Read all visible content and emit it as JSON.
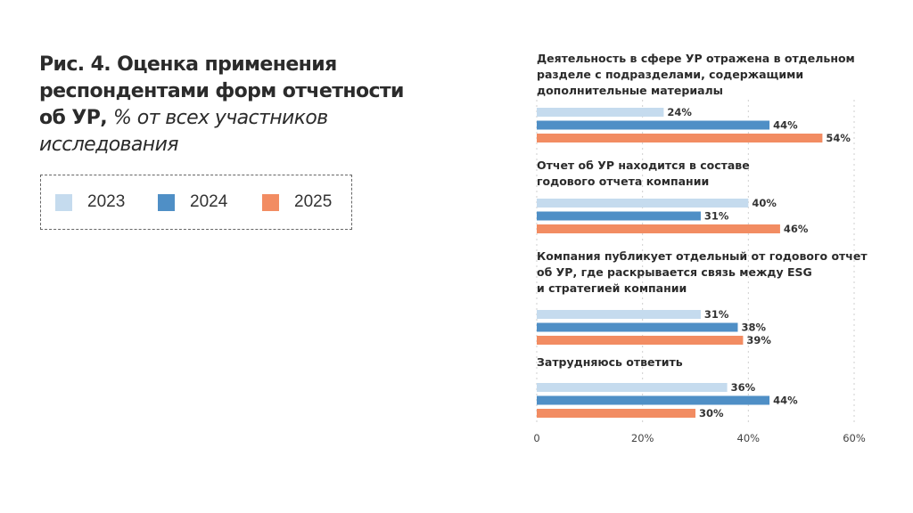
{
  "title": {
    "main": "Рис. 4. Оценка применения респондентами форм отчетности об УР,",
    "subtitle": "% от всех участников исследования"
  },
  "legend": [
    {
      "label": "2023",
      "color": "#c5dbee"
    },
    {
      "label": "2024",
      "color": "#4f8fc6"
    },
    {
      "label": "2025",
      "color": "#f28c62"
    }
  ],
  "chart_data": {
    "type": "bar",
    "orientation": "horizontal",
    "title": "Рис. 4. Оценка применения респондентами форм отчетности об УР, % от всех участников исследования",
    "xlabel": "",
    "ylabel": "",
    "xlim": [
      0,
      60
    ],
    "xticks": [
      "0",
      "20%",
      "40%",
      "60%"
    ],
    "xtick_values": [
      0,
      20,
      40,
      60
    ],
    "grid": "vertical dotted",
    "legend_position": "left",
    "categories": [
      [
        "Деятельность в сфере УР отражена в отдельном",
        "разделе с подразделами, содержащими",
        "дополнительные материалы"
      ],
      [
        "Отчет об УР находится в составе",
        "годового отчета компании"
      ],
      [
        "Компания публикует отдельный от годового отчет",
        "об УР, где раскрывается связь между ESG",
        "и стратегией компании"
      ],
      [
        "Затрудняюсь ответить"
      ]
    ],
    "series": [
      {
        "name": "2023",
        "color": "#c5dbee",
        "values": [
          24,
          40,
          31,
          36
        ],
        "labels": [
          "24%",
          "40%",
          "31%",
          "36%"
        ]
      },
      {
        "name": "2024",
        "color": "#4f8fc6",
        "values": [
          44,
          31,
          38,
          44
        ],
        "labels": [
          "44%",
          "31%",
          "38%",
          "44%"
        ]
      },
      {
        "name": "2025",
        "color": "#f28c62",
        "values": [
          54,
          46,
          39,
          30
        ],
        "labels": [
          "54%",
          "46%",
          "39%",
          "30%"
        ]
      }
    ]
  }
}
